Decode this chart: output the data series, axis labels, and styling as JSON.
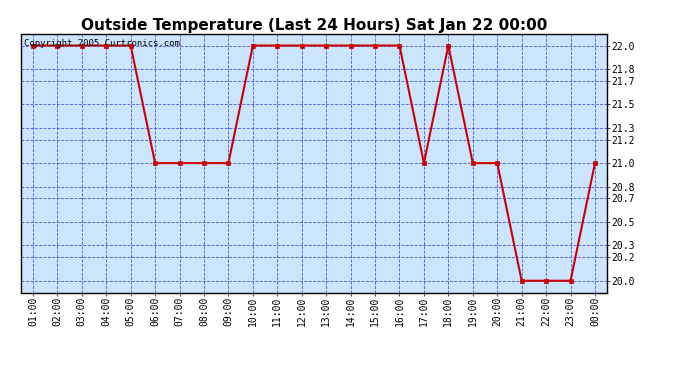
{
  "title": "Outside Temperature (Last 24 Hours) Sat Jan 22 00:00",
  "copyright": "Copyright 2005 Curtronics.com",
  "x_labels": [
    "01:00",
    "02:00",
    "03:00",
    "04:00",
    "05:00",
    "06:00",
    "07:00",
    "08:00",
    "09:00",
    "10:00",
    "11:00",
    "12:00",
    "13:00",
    "14:00",
    "15:00",
    "16:00",
    "17:00",
    "18:00",
    "19:00",
    "20:00",
    "21:00",
    "22:00",
    "23:00",
    "00:00"
  ],
  "x_values": [
    1,
    2,
    3,
    4,
    5,
    6,
    7,
    8,
    9,
    10,
    11,
    12,
    13,
    14,
    15,
    16,
    17,
    18,
    19,
    20,
    21,
    22,
    23,
    24
  ],
  "y_values": [
    22.0,
    22.0,
    22.0,
    22.0,
    22.0,
    21.0,
    21.0,
    21.0,
    21.0,
    22.0,
    22.0,
    22.0,
    22.0,
    22.0,
    22.0,
    22.0,
    21.0,
    22.0,
    21.0,
    21.0,
    20.0,
    20.0,
    20.0,
    21.0
  ],
  "ylim": [
    19.9,
    22.1
  ],
  "xlim": [
    0.5,
    24.5
  ],
  "yticks": [
    20.0,
    20.2,
    20.3,
    20.5,
    20.7,
    20.8,
    21.0,
    21.2,
    21.3,
    21.5,
    21.7,
    21.8,
    22.0
  ],
  "ytick_labels": [
    "20.0",
    "20.2",
    "20.3",
    "20.5",
    "20.7",
    "20.8",
    "21.0",
    "21.2",
    "21.3",
    "21.5",
    "21.7",
    "21.8",
    "22.0"
  ],
  "line_color": "#cc0000",
  "marker": "s",
  "marker_size": 3,
  "plot_bg": "#cce5ff",
  "fig_bg": "#ffffff",
  "grid_color": "#3333cc",
  "grid_style": "--",
  "grid_alpha": 0.8,
  "grid_linewidth": 0.6,
  "title_fontsize": 11,
  "tick_fontsize": 7,
  "copyright_fontsize": 6.5,
  "line_width": 1.5
}
